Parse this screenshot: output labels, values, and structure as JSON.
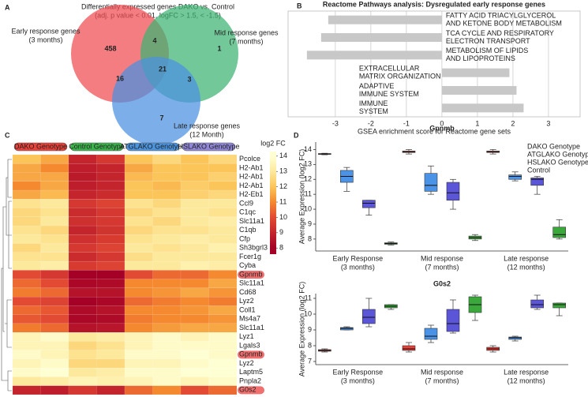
{
  "chart_data": [
    {
      "type": "venn",
      "panel": "A",
      "title": [
        "Differentially expressed genes DAKO vs. Control",
        "(adj. p value < 0.01, logFC > 1.5, < -1.5)"
      ],
      "sets": [
        {
          "name": [
            "Early response genes",
            "(3 months)"
          ],
          "color": "#ef4b50"
        },
        {
          "name": [
            "Mid response genes",
            "(7 months)"
          ],
          "color": "#3cb371"
        },
        {
          "name": [
            "Late response genes",
            "(12 Month)"
          ],
          "color": "#4a90e2"
        }
      ],
      "values": [
        458,
        4,
        1,
        16,
        21,
        3,
        7
      ]
    },
    {
      "type": "barh",
      "panel": "B",
      "title": "Reactome Pathways analysis: Dysregulated early response genes",
      "categories": [
        [
          "FATTY ACID TRIACYLGLYCEROL",
          "AND KETONE BODY METABOLISM"
        ],
        [
          "TCA CYCLE AND RESPIRATORY",
          "ELECTRON TRANSPORT"
        ],
        [
          "METABOLISM OF LIPIDS",
          "AND LIPOPROTEINS"
        ],
        [
          "EXTRACELLULAR",
          "MATRIX ORGANIZATION"
        ],
        [
          "ADAPTIVE",
          "IMMUNE SYSTEM"
        ],
        [
          "IMMUNE",
          "SYSTEM"
        ]
      ],
      "values": [
        -3.2,
        -3.4,
        -3.8,
        1.9,
        2.1,
        2.3
      ],
      "color": "#c8c8c8",
      "xlim": [
        -4.33,
        3.89
      ],
      "xticks": [
        -3,
        -2,
        -1,
        0,
        1,
        2,
        3
      ],
      "xlabel": "GSEA enrichment score for Reactome gene sets",
      "grid": true
    },
    {
      "type": "heatmap",
      "panel": "C",
      "groups": [
        {
          "name": "DAKO Genotype",
          "color": "#e8413a"
        },
        {
          "name": "Control Genotype",
          "color": "#3cb44b"
        },
        {
          "name": "ATGLAKO Genotype",
          "color": "#4b93dc"
        },
        {
          "name": "HSLAKO Genotype",
          "color": "#8f86d6"
        }
      ],
      "rows": [
        "Pcolce",
        "H2-Ab1",
        "H2-Ab1",
        "H2-Ab1",
        "H2-Eb1",
        "Ccl9",
        "C1qc",
        "Slc11a1",
        "C1qb",
        "Cfp",
        "Sh3bgrl3",
        "Fcer1g",
        "Cyba",
        "Gpnmb",
        "Slc11a1",
        "Cd68",
        "Lyz2",
        "Coll1",
        "Ms4a7",
        "Slc11a1",
        "Lyz1",
        "Lgals3",
        "Gpnmb",
        "Lyz2",
        "Laptm5",
        "Pnpla2",
        "G0s2"
      ],
      "values": [
        [
          12,
          11.5,
          9,
          9.5,
          12,
          12.5,
          12,
          12.5
        ],
        [
          11.5,
          11,
          8.8,
          9,
          11.5,
          12,
          12,
          12
        ],
        [
          11.5,
          11.5,
          8.7,
          9,
          11.8,
          12,
          12,
          12.3
        ],
        [
          11,
          11.5,
          8.8,
          9,
          12,
          11.8,
          12.2,
          12
        ],
        [
          11.5,
          11.8,
          9,
          9.2,
          12,
          12,
          12.3,
          12.5
        ],
        [
          12.8,
          13,
          9.5,
          9.8,
          12.8,
          12.5,
          13,
          13
        ],
        [
          12.5,
          12.8,
          9.2,
          9.5,
          12.5,
          12.8,
          13,
          12.8
        ],
        [
          12.5,
          13,
          9.3,
          9.5,
          12.8,
          12.5,
          13,
          13.2
        ],
        [
          12.8,
          12.5,
          9,
          9.4,
          12.5,
          12.8,
          12.8,
          13
        ],
        [
          13,
          12.8,
          9.3,
          9.6,
          12.8,
          13,
          13.2,
          13
        ],
        [
          12.5,
          13,
          9.5,
          9.8,
          13,
          12.8,
          13,
          13.3
        ],
        [
          12.8,
          12.8,
          9.2,
          9.5,
          12.7,
          13,
          13,
          13
        ],
        [
          13,
          13.2,
          9.6,
          9.8,
          13,
          13,
          13.3,
          13.2
        ],
        [
          10,
          9.5,
          8,
          8,
          10,
          10.5,
          10.5,
          11
        ],
        [
          10.5,
          10,
          8.2,
          8.3,
          11,
          11,
          11,
          11.5
        ],
        [
          10.8,
          10.5,
          8.5,
          8.5,
          11,
          11.2,
          11.5,
          11.2
        ],
        [
          10,
          9.8,
          8,
          8.2,
          10.5,
          10.8,
          11,
          10.8
        ],
        [
          10.5,
          10.2,
          8.3,
          8.5,
          11,
          11,
          11.2,
          11.5
        ],
        [
          10.2,
          10,
          8.2,
          8.3,
          10.8,
          11,
          11,
          11.2
        ],
        [
          10.8,
          10.5,
          8.5,
          8.6,
          11,
          11.3,
          11.5,
          11.5
        ],
        [
          13.5,
          13.8,
          13,
          13.2,
          13.5,
          13.8,
          13.5,
          13.8
        ],
        [
          13.5,
          13.5,
          12.5,
          12.8,
          13.5,
          13.8,
          13.8,
          13.8
        ],
        [
          13.8,
          13.5,
          12.8,
          13,
          13.8,
          13.8,
          14,
          13.8
        ],
        [
          13.5,
          13.8,
          12.5,
          12.5,
          13.5,
          13.5,
          13.8,
          14
        ],
        [
          13.8,
          14,
          13,
          13.2,
          13.8,
          13.8,
          14,
          14
        ],
        [
          13,
          13.2,
          13.5,
          13.3,
          13.5,
          13.8,
          13.5,
          13.8
        ],
        [
          9,
          8.8,
          9.5,
          9,
          10.5,
          11,
          10,
          10.5
        ]
      ],
      "highlight_rows": [
        13,
        22,
        26
      ],
      "highlight_color": "#f07070",
      "colorbar_title": "log2 FC",
      "clim": [
        7.6,
        14.3
      ],
      "cticks": [
        8,
        9,
        10,
        11,
        12,
        13,
        14
      ],
      "colorscale": [
        [
          8,
          "#a50026"
        ],
        [
          10,
          "#e34a33"
        ],
        [
          11,
          "#f4892f"
        ],
        [
          12,
          "#fbc55a"
        ],
        [
          13,
          "#fde99c"
        ],
        [
          14,
          "#ffffd4"
        ]
      ]
    },
    {
      "type": "box",
      "panel": "D",
      "title": "Gpnmb",
      "ylabel": "Average Expression (log2 FC)",
      "categories": [
        [
          "Early Response",
          "(3 months)"
        ],
        [
          "Mid response",
          "(7 months)"
        ],
        [
          "Late response",
          "(12 months)"
        ]
      ],
      "series": [
        {
          "name": "DAKO Genotype",
          "color": "#e8413a",
          "values": [
            [
              13.65,
              13.68,
              13.7,
              13.73,
              13.75
            ],
            [
              13.7,
              13.8,
              13.85,
              13.9,
              14.0
            ],
            [
              13.7,
              13.8,
              13.85,
              13.9,
              14.0
            ]
          ]
        },
        {
          "name": "ATGLAKO Genotype",
          "color": "#4b93e6",
          "values": [
            [
              11.2,
              11.8,
              12.2,
              12.6,
              12.8
            ],
            [
              11.0,
              11.2,
              11.6,
              12.4,
              12.9
            ],
            [
              11.9,
              12.0,
              12.2,
              12.3,
              12.5
            ]
          ]
        },
        {
          "name": "HSLAKO Genotype",
          "color": "#5b55d8",
          "values": [
            [
              9.6,
              10.1,
              10.4,
              10.6,
              10.6
            ],
            [
              10.0,
              10.6,
              11.1,
              11.8,
              12.0
            ],
            [
              11.0,
              11.6,
              12.0,
              12.1,
              12.2
            ]
          ]
        },
        {
          "name": "Control",
          "color": "#3aa83a",
          "values": [
            [
              7.6,
              7.65,
              7.7,
              7.75,
              7.8
            ],
            [
              7.9,
              8.0,
              8.1,
              8.2,
              8.3
            ],
            [
              8.0,
              8.1,
              8.3,
              8.8,
              9.3
            ]
          ]
        }
      ],
      "ylim": [
        7.2,
        14.5
      ],
      "yticks": [
        8,
        9,
        10,
        11,
        12,
        13,
        14
      ],
      "legend": "upper right"
    },
    {
      "type": "box",
      "title": "G0s2",
      "ylabel": "Average Expression (log2 FC)",
      "categories": [
        [
          "Early Response",
          "(3 months)"
        ],
        [
          "Mid response",
          "(7 months)"
        ],
        [
          "Late response",
          "(12 months)"
        ]
      ],
      "series": [
        {
          "color": "#e8413a",
          "values": [
            [
              7.6,
              7.65,
              7.7,
              7.75,
              7.8
            ],
            [
              7.6,
              7.7,
              7.8,
              8.0,
              8.2
            ],
            [
              7.6,
              7.7,
              7.8,
              7.9,
              8.0
            ]
          ]
        },
        {
          "color": "#4b93e6",
          "values": [
            [
              9.0,
              9.0,
              9.1,
              9.15,
              9.2
            ],
            [
              8.2,
              8.4,
              8.6,
              9.1,
              9.3
            ],
            [
              8.3,
              8.4,
              8.5,
              8.55,
              8.6
            ]
          ]
        },
        {
          "color": "#5b55d8",
          "values": [
            [
              9.2,
              9.4,
              9.8,
              10.3,
              11.0
            ],
            [
              8.8,
              8.9,
              9.4,
              10.3,
              10.9
            ],
            [
              10.3,
              10.4,
              10.6,
              10.9,
              11.2
            ]
          ]
        },
        {
          "color": "#3aa83a",
          "values": [
            [
              10.3,
              10.4,
              10.5,
              10.6,
              10.6
            ],
            [
              9.6,
              10.1,
              10.6,
              11.1,
              11.2
            ],
            [
              9.9,
              10.4,
              10.6,
              10.7,
              10.7
            ]
          ]
        }
      ],
      "ylim": [
        6.8,
        11.3
      ],
      "yticks": [
        7,
        8,
        9,
        10,
        11
      ]
    }
  ]
}
